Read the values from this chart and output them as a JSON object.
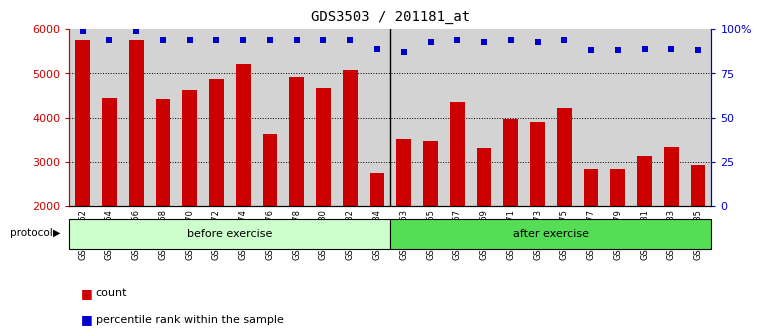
{
  "title": "GDS3503 / 201181_at",
  "samples": [
    "GSM306062",
    "GSM306064",
    "GSM306066",
    "GSM306068",
    "GSM306070",
    "GSM306072",
    "GSM306074",
    "GSM306076",
    "GSM306078",
    "GSM306080",
    "GSM306082",
    "GSM306084",
    "GSM306063",
    "GSM306065",
    "GSM306067",
    "GSM306069",
    "GSM306071",
    "GSM306073",
    "GSM306075",
    "GSM306077",
    "GSM306079",
    "GSM306081",
    "GSM306083",
    "GSM306085"
  ],
  "counts": [
    5750,
    4450,
    5750,
    4430,
    4620,
    4870,
    5220,
    3640,
    4920,
    4680,
    5080,
    2740,
    3520,
    3470,
    4350,
    3320,
    3980,
    3910,
    4230,
    2850,
    2830,
    3130,
    3340,
    2940
  ],
  "percentiles": [
    99,
    94,
    99,
    94,
    94,
    94,
    94,
    94,
    94,
    94,
    94,
    89,
    87,
    93,
    94,
    93,
    94,
    93,
    94,
    88,
    88,
    89,
    89,
    88
  ],
  "before_count": 12,
  "after_count": 12,
  "bar_color": "#cc0000",
  "dot_color": "#0000cc",
  "ylim_left": [
    2000,
    6000
  ],
  "ylim_right": [
    0,
    100
  ],
  "yticks_left": [
    2000,
    3000,
    4000,
    5000,
    6000
  ],
  "yticks_right": [
    0,
    25,
    50,
    75,
    100
  ],
  "yticklabels_right": [
    "0",
    "25",
    "50",
    "75",
    "100%"
  ],
  "before_label": "before exercise",
  "after_label": "after exercise",
  "before_color": "#ccffcc",
  "after_color": "#55dd55",
  "protocol_label": "protocol",
  "legend_count_label": "count",
  "legend_pct_label": "percentile rank within the sample",
  "bg_color": "#d3d3d3",
  "title_fontsize": 10
}
